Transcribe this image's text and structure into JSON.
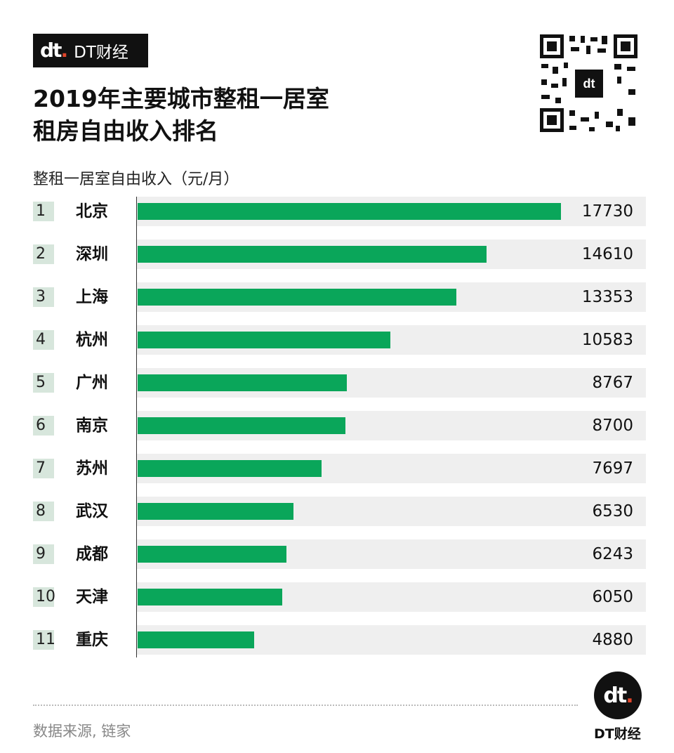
{
  "brand": {
    "name": "DT财经",
    "mark": "dt",
    "mark_dot": "."
  },
  "title_lines": [
    "2019年主要城市整租一居室",
    "租房自由收入排名"
  ],
  "metric_label": "整租一居室自由收入（元/月）",
  "source": "数据来源, 链家",
  "colors": {
    "bar": "#0aa65a",
    "row_bg": "#efefef",
    "rank_bg": "#d7e6dc",
    "accent": "#e0452b"
  },
  "chart_data": {
    "type": "bar",
    "orientation": "horizontal",
    "categories": [
      "北京",
      "深圳",
      "上海",
      "杭州",
      "广州",
      "南京",
      "苏州",
      "武汉",
      "成都",
      "天津",
      "重庆"
    ],
    "ranks": [
      "1",
      "2",
      "3",
      "4",
      "5",
      "6",
      "7",
      "8",
      "9",
      "10",
      "11"
    ],
    "values": [
      17730,
      14610,
      13353,
      10583,
      8767,
      8700,
      7697,
      6530,
      6243,
      6050,
      4880
    ],
    "xlim": [
      0,
      17730
    ],
    "grid": false
  }
}
